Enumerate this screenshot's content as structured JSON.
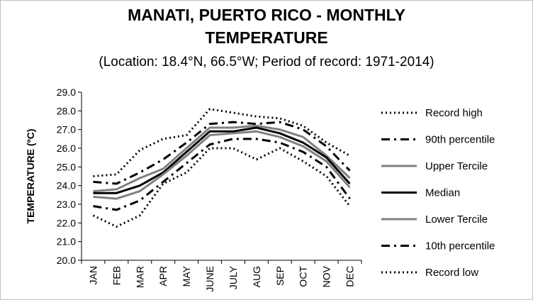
{
  "chart_data": {
    "type": "line",
    "title_line1": "MANATI, PUERTO RICO - MONTHLY",
    "title_line2": "TEMPERATURE",
    "subtitle": "(Location: 18.4°N, 66.5°W; Period of record: 1971-2014)",
    "ylabel": "TEMPERATURE (ºC)",
    "xlabel": "",
    "ylim": [
      20.0,
      29.0
    ],
    "yticks": [
      "20.0",
      "21.0",
      "22.0",
      "23.0",
      "24.0",
      "25.0",
      "26.0",
      "27.0",
      "28.0",
      "29.0"
    ],
    "categories": [
      "JAN",
      "FEB",
      "MAR",
      "APR",
      "MAY",
      "JUNE",
      "JULY",
      "AUG",
      "SEP",
      "OCT",
      "NOV",
      "DEC"
    ],
    "grid": false,
    "legend_position": "right",
    "series": [
      {
        "name": "Record high",
        "color": "#000000",
        "style": "dotted",
        "values": [
          24.5,
          24.6,
          25.9,
          26.5,
          26.7,
          28.1,
          27.9,
          27.7,
          27.6,
          27.2,
          26.3,
          25.6
        ]
      },
      {
        "name": "90th percentile",
        "color": "#000000",
        "style": "dashdot",
        "values": [
          24.2,
          24.1,
          24.7,
          25.4,
          26.3,
          27.3,
          27.4,
          27.3,
          27.4,
          27.0,
          26.1,
          24.8
        ]
      },
      {
        "name": "Upper Tercile",
        "color": "#808080",
        "style": "solid",
        "values": [
          23.7,
          23.8,
          24.4,
          24.9,
          26.0,
          27.1,
          27.1,
          27.2,
          27.0,
          26.6,
          25.6,
          24.4
        ]
      },
      {
        "name": "Median",
        "color": "#000000",
        "style": "solid",
        "values": [
          23.6,
          23.6,
          24.0,
          24.7,
          25.8,
          26.9,
          26.9,
          27.1,
          26.8,
          26.3,
          25.5,
          24.1
        ]
      },
      {
        "name": "Lower Tercile",
        "color": "#808080",
        "style": "solid",
        "values": [
          23.4,
          23.3,
          23.7,
          24.6,
          25.6,
          26.7,
          26.8,
          26.9,
          26.6,
          26.1,
          25.3,
          23.9
        ]
      },
      {
        "name": "10th percentile",
        "color": "#000000",
        "style": "dashdot",
        "values": [
          22.9,
          22.7,
          23.2,
          24.2,
          25.2,
          26.2,
          26.5,
          26.5,
          26.3,
          25.8,
          25.0,
          23.3
        ]
      },
      {
        "name": "Record low",
        "color": "#000000",
        "style": "dotted",
        "values": [
          22.4,
          21.8,
          22.4,
          24.1,
          24.7,
          26.0,
          26.0,
          25.4,
          26.0,
          25.3,
          24.5,
          22.9
        ]
      }
    ]
  }
}
